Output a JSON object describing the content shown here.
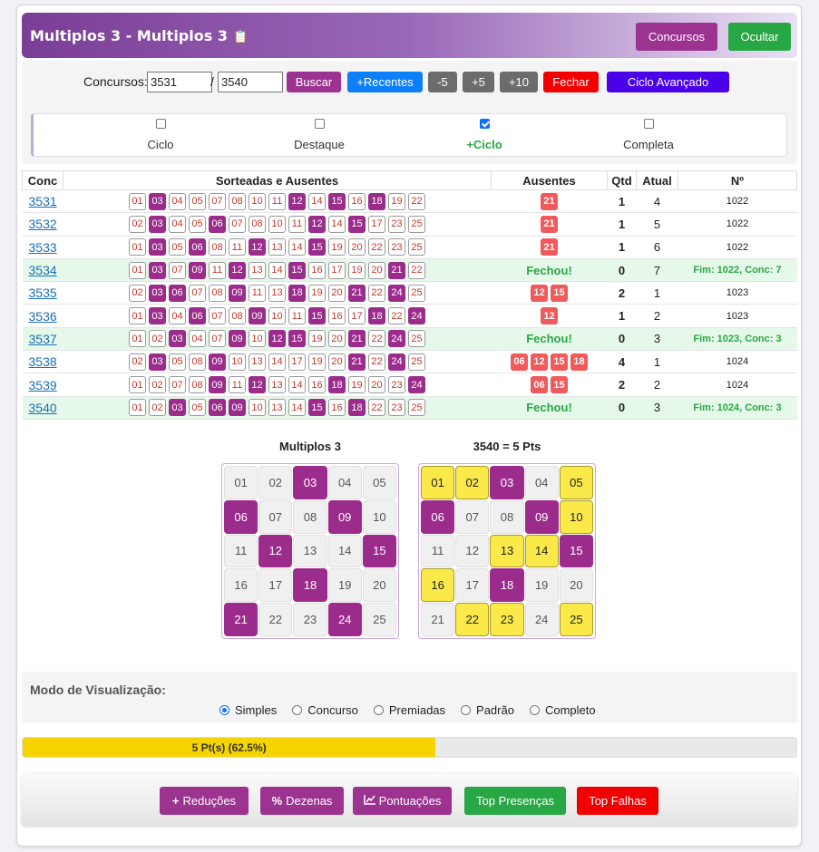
{
  "header": {
    "title": "Multiplos 3 - Multiplos 3",
    "btn_concursos": "Concursos",
    "btn_ocultar": "Ocultar"
  },
  "controls": {
    "label": "Concursos:",
    "from_value": "3531",
    "to_value": "3540",
    "separator": "/",
    "buscar": "Buscar",
    "recentes": "+Recentes",
    "minus5": "-5",
    "plus5": "+5",
    "plus10": "+10",
    "fechar": "Fechar",
    "ciclo_avancado": "Ciclo Avançado"
  },
  "modes": [
    {
      "label": "Ciclo",
      "checked": false
    },
    {
      "label": "Destaque",
      "checked": false
    },
    {
      "label": "+Ciclo",
      "checked": true
    },
    {
      "label": "Completa",
      "checked": false
    }
  ],
  "table": {
    "headers": [
      "Conc",
      "Sorteadas e Ausentes",
      "Ausentes",
      "Qtd",
      "Atual",
      "Nº"
    ],
    "fechou_label": "Fechou!",
    "rows": [
      {
        "conc": "3531",
        "nums": [
          "01",
          "03",
          "04",
          "05",
          "07",
          "08",
          "10",
          "11",
          "12",
          "14",
          "15",
          "16",
          "18",
          "19",
          "22"
        ],
        "on": [
          "03",
          "12",
          "15",
          "18"
        ],
        "aus": [
          "21"
        ],
        "qtd": "1",
        "atual": "4",
        "n": "1022",
        "fechou": false
      },
      {
        "conc": "3532",
        "nums": [
          "02",
          "03",
          "04",
          "05",
          "06",
          "07",
          "08",
          "10",
          "11",
          "12",
          "14",
          "15",
          "17",
          "23",
          "25"
        ],
        "on": [
          "03",
          "06",
          "12",
          "15"
        ],
        "aus": [
          "21"
        ],
        "qtd": "1",
        "atual": "5",
        "n": "1022",
        "fechou": false
      },
      {
        "conc": "3533",
        "nums": [
          "01",
          "03",
          "05",
          "06",
          "08",
          "11",
          "12",
          "13",
          "14",
          "15",
          "19",
          "20",
          "22",
          "23",
          "25"
        ],
        "on": [
          "03",
          "06",
          "12",
          "15"
        ],
        "aus": [
          "21"
        ],
        "qtd": "1",
        "atual": "6",
        "n": "1022",
        "fechou": false
      },
      {
        "conc": "3534",
        "nums": [
          "01",
          "03",
          "07",
          "09",
          "11",
          "12",
          "13",
          "14",
          "15",
          "16",
          "17",
          "19",
          "20",
          "21",
          "22"
        ],
        "on": [
          "03",
          "09",
          "12",
          "15",
          "21"
        ],
        "aus": [],
        "qtd": "0",
        "atual": "7",
        "n": "Fim: 1022, Conc: 7",
        "fechou": true
      },
      {
        "conc": "3535",
        "nums": [
          "02",
          "03",
          "06",
          "07",
          "08",
          "09",
          "11",
          "13",
          "18",
          "19",
          "20",
          "21",
          "22",
          "24",
          "25"
        ],
        "on": [
          "03",
          "06",
          "09",
          "18",
          "21",
          "24"
        ],
        "aus": [
          "12",
          "15"
        ],
        "qtd": "2",
        "atual": "1",
        "n": "1023",
        "fechou": false
      },
      {
        "conc": "3536",
        "nums": [
          "01",
          "03",
          "04",
          "06",
          "07",
          "08",
          "09",
          "10",
          "11",
          "15",
          "16",
          "17",
          "18",
          "22",
          "24"
        ],
        "on": [
          "03",
          "06",
          "09",
          "15",
          "18",
          "24"
        ],
        "aus": [
          "12"
        ],
        "qtd": "1",
        "atual": "2",
        "n": "1023",
        "fechou": false
      },
      {
        "conc": "3537",
        "nums": [
          "01",
          "02",
          "03",
          "04",
          "07",
          "09",
          "10",
          "12",
          "15",
          "19",
          "20",
          "21",
          "22",
          "24",
          "25"
        ],
        "on": [
          "03",
          "09",
          "12",
          "15",
          "21",
          "24"
        ],
        "aus": [],
        "qtd": "0",
        "atual": "3",
        "n": "Fim: 1023, Conc: 3",
        "fechou": true
      },
      {
        "conc": "3538",
        "nums": [
          "02",
          "03",
          "05",
          "08",
          "09",
          "10",
          "13",
          "14",
          "17",
          "19",
          "20",
          "21",
          "22",
          "24",
          "25"
        ],
        "on": [
          "03",
          "09",
          "21",
          "24"
        ],
        "aus": [
          "06",
          "12",
          "15",
          "18"
        ],
        "qtd": "4",
        "atual": "1",
        "n": "1024",
        "fechou": false
      },
      {
        "conc": "3539",
        "nums": [
          "01",
          "02",
          "07",
          "08",
          "09",
          "11",
          "12",
          "13",
          "14",
          "16",
          "18",
          "19",
          "20",
          "23",
          "24"
        ],
        "on": [
          "09",
          "12",
          "18",
          "24"
        ],
        "aus": [
          "06",
          "15"
        ],
        "qtd": "2",
        "atual": "2",
        "n": "1024",
        "fechou": false
      },
      {
        "conc": "3540",
        "nums": [
          "01",
          "02",
          "03",
          "05",
          "06",
          "09",
          "10",
          "13",
          "14",
          "15",
          "16",
          "18",
          "22",
          "23",
          "25"
        ],
        "on": [
          "03",
          "06",
          "09",
          "15",
          "18"
        ],
        "aus": [],
        "qtd": "0",
        "atual": "3",
        "n": "Fim: 1024, Conc: 3",
        "fechou": true
      }
    ]
  },
  "grids": {
    "left_title": "Multiplos 3",
    "right_title": "3540 = 5 Pts",
    "left_marked": [
      "03",
      "06",
      "09",
      "12",
      "15",
      "18",
      "21",
      "24"
    ],
    "right_marked": [
      "03",
      "06",
      "09",
      "15",
      "18"
    ],
    "right_yellow": [
      "01",
      "02",
      "05",
      "10",
      "13",
      "14",
      "16",
      "22",
      "23",
      "25"
    ]
  },
  "viz": {
    "title": "Modo de Visualização:",
    "options": [
      {
        "label": "Simples",
        "checked": true
      },
      {
        "label": "Concurso",
        "checked": false
      },
      {
        "label": "Premiadas",
        "checked": false
      },
      {
        "label": "Padrão",
        "checked": false
      },
      {
        "label": "Completo",
        "checked": false
      }
    ]
  },
  "progress": {
    "label": "5 Pt(s) (62.5%)",
    "fraction": 0.625
  },
  "footer": {
    "reducoes": "Reduções",
    "dezenas": "Dezenas",
    "pontuacoes": "Pontuações",
    "top_presencas": "Top Presenças",
    "top_falhas": "Top Falhas"
  },
  "colors": {
    "accent_purple": "#9c2c8c",
    "green": "#28a745",
    "red": "#f20000",
    "yellow": "#fbe94a"
  }
}
